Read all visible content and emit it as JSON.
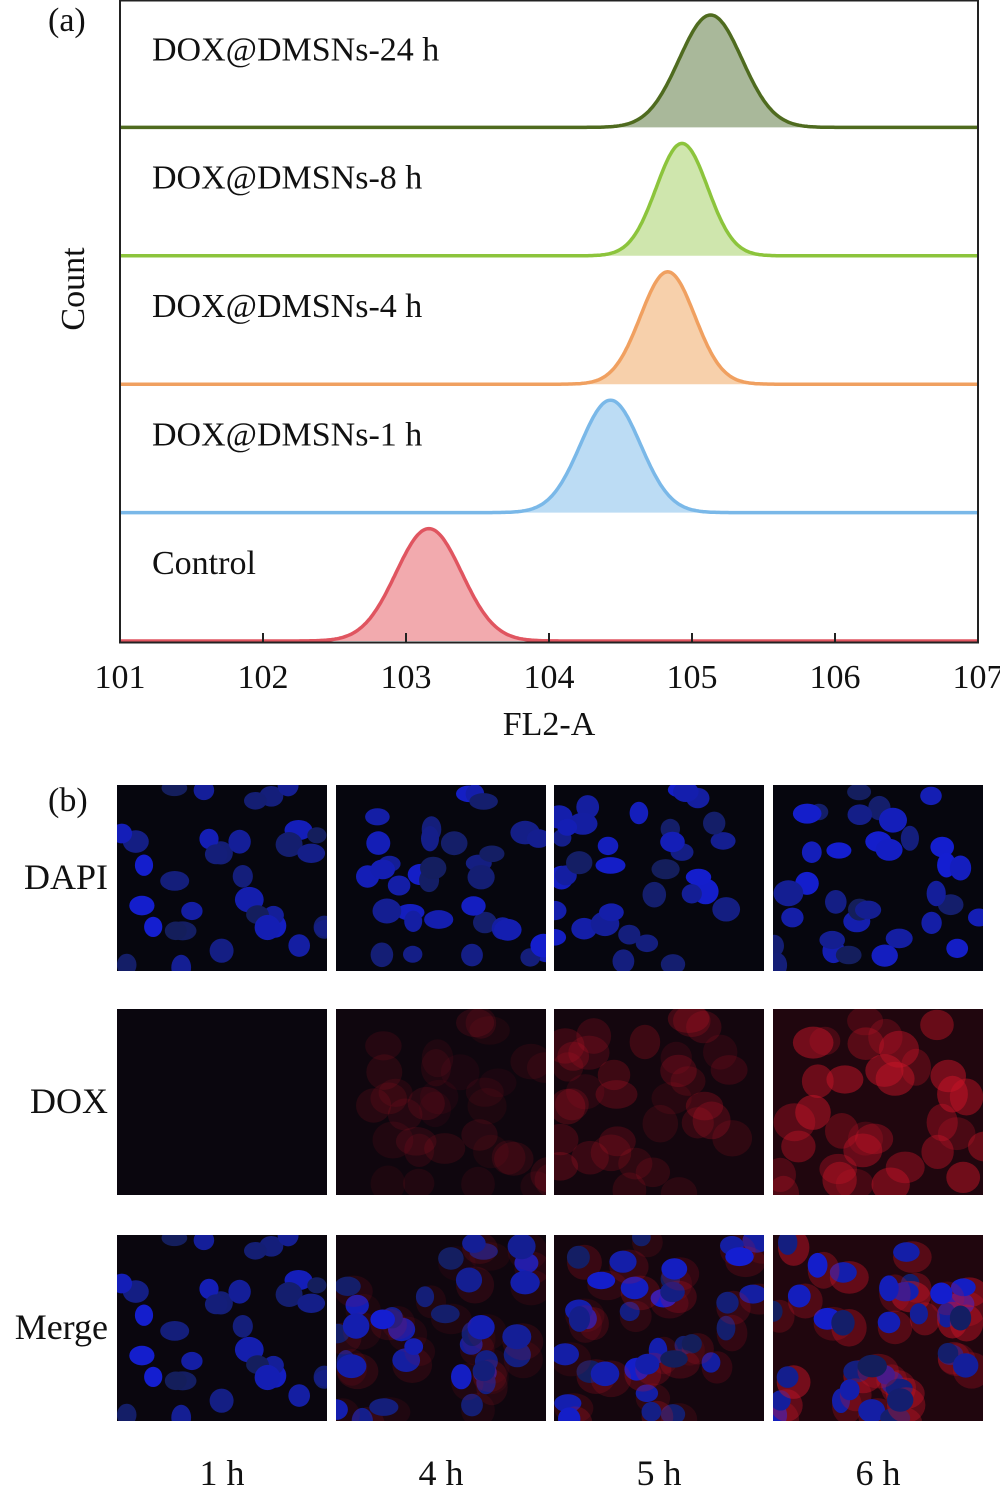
{
  "panel_a_label": "(a)",
  "panel_b_label": "(b)",
  "chart_data": {
    "type": "area",
    "title": "",
    "xlabel": "FL2-A",
    "ylabel": "Count",
    "x_scale": "log",
    "xlim": [
      101,
      107
    ],
    "x_ticks": [
      "101",
      "102",
      "103",
      "104",
      "105",
      "106",
      "107"
    ],
    "series": [
      {
        "name": "DOX@DMSNs-24 h",
        "peak": 105.13,
        "width": 0.22,
        "color": "#4f6b1f",
        "fill": "#a9b89a"
      },
      {
        "name": "DOX@DMSNs-8 h",
        "peak": 104.93,
        "width": 0.18,
        "color": "#8cc43c",
        "fill": "#cfe6ad"
      },
      {
        "name": "DOX@DMSNs-4 h",
        "peak": 104.83,
        "width": 0.19,
        "color": "#f0a060",
        "fill": "#f7d0ab"
      },
      {
        "name": "DOX@DMSNs-1 h",
        "peak": 104.43,
        "width": 0.21,
        "color": "#7ab8e8",
        "fill": "#bcdcf4"
      },
      {
        "name": "Control",
        "peak": 103.16,
        "width": 0.23,
        "color": "#e05560",
        "fill": "#f2aaae"
      }
    ]
  },
  "panel_b": {
    "rows": [
      "DAPI",
      "DOX",
      "Merge"
    ],
    "columns": [
      "1 h",
      "4 h",
      "5 h",
      "6 h"
    ],
    "dox_intensity": [
      0.05,
      0.18,
      0.3,
      0.6
    ]
  }
}
